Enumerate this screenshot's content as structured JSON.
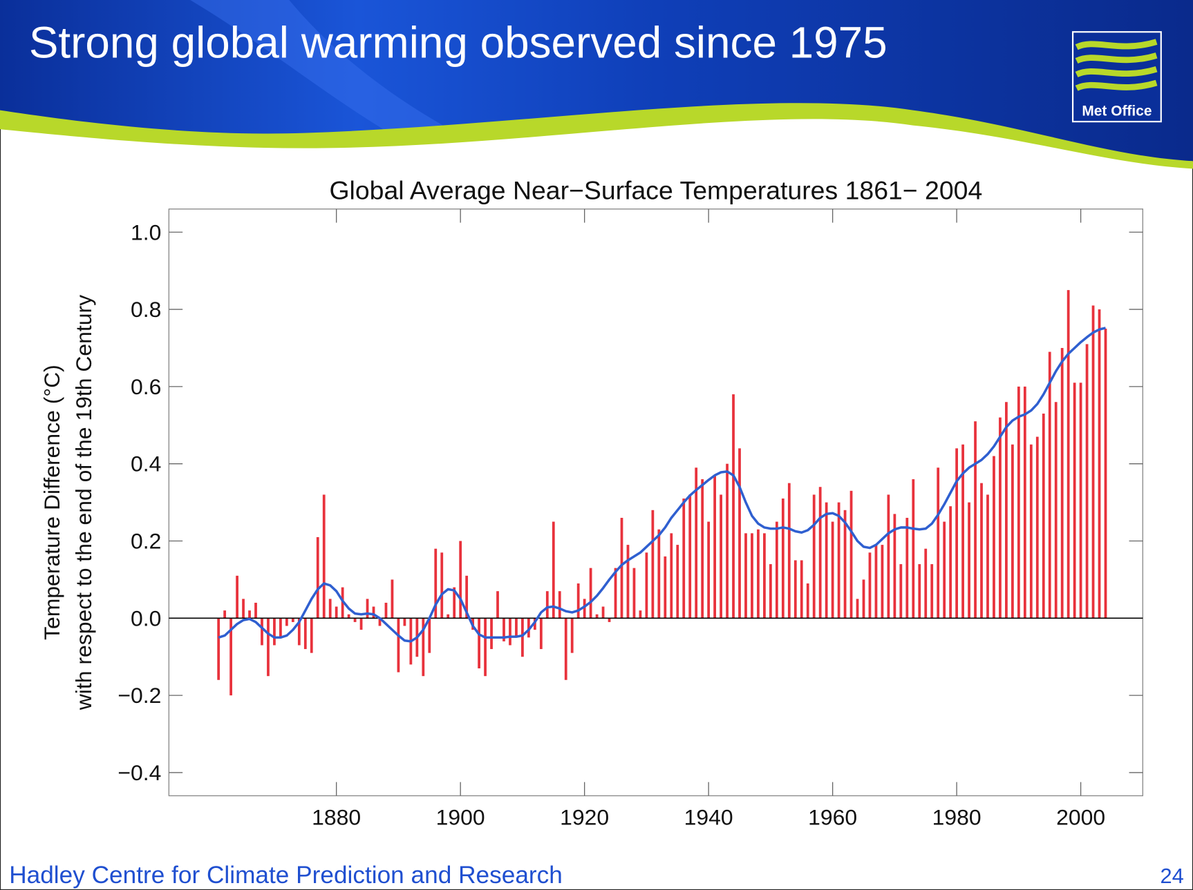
{
  "header": {
    "title": "Strong global warming observed since 1975",
    "logo": "Met Office"
  },
  "footer": {
    "organization": "Hadley Centre for Climate Prediction and Research",
    "page_number": "24"
  },
  "chart_data": {
    "type": "bar",
    "title": "Global Average Near−Surface Temperatures 1861− 2004",
    "ylabel": [
      "Temperature Difference (°C)",
      "with respect to the end of the 19th Century"
    ],
    "xlim": [
      1853,
      2010
    ],
    "xticks": [
      1880,
      1900,
      1920,
      1940,
      1960,
      1980,
      2000
    ],
    "ylim": [
      -0.46,
      1.06
    ],
    "yticks": [
      {
        "value": -0.4,
        "label": "−0.4"
      },
      {
        "value": -0.2,
        "label": "−0.2"
      },
      {
        "value": 0,
        "label": "0.0"
      },
      0.2,
      0.4,
      0.6,
      0.8,
      {
        "value": 1.0,
        "label": "1.0"
      }
    ],
    "x": [
      1861,
      1862,
      1863,
      1864,
      1865,
      1866,
      1867,
      1868,
      1869,
      1870,
      1871,
      1872,
      1873,
      1874,
      1875,
      1876,
      1877,
      1878,
      1879,
      1880,
      1881,
      1882,
      1883,
      1884,
      1885,
      1886,
      1887,
      1888,
      1889,
      1890,
      1891,
      1892,
      1893,
      1894,
      1895,
      1896,
      1897,
      1898,
      1899,
      1900,
      1901,
      1902,
      1903,
      1904,
      1905,
      1906,
      1907,
      1908,
      1909,
      1910,
      1911,
      1912,
      1913,
      1914,
      1915,
      1916,
      1917,
      1918,
      1919,
      1920,
      1921,
      1922,
      1923,
      1924,
      1925,
      1926,
      1927,
      1928,
      1929,
      1930,
      1931,
      1932,
      1933,
      1934,
      1935,
      1936,
      1937,
      1938,
      1939,
      1940,
      1941,
      1942,
      1943,
      1944,
      1945,
      1946,
      1947,
      1948,
      1949,
      1950,
      1951,
      1952,
      1953,
      1954,
      1955,
      1956,
      1957,
      1958,
      1959,
      1960,
      1961,
      1962,
      1963,
      1964,
      1965,
      1966,
      1967,
      1968,
      1969,
      1970,
      1971,
      1972,
      1973,
      1974,
      1975,
      1976,
      1977,
      1978,
      1979,
      1980,
      1981,
      1982,
      1983,
      1984,
      1985,
      1986,
      1987,
      1988,
      1989,
      1990,
      1991,
      1992,
      1993,
      1994,
      1995,
      1996,
      1997,
      1998,
      1999,
      2000,
      2001,
      2002,
      2003,
      2004
    ],
    "series": [
      {
        "kind": "bar",
        "color": "#e8323c",
        "values": [
          -0.16,
          0.02,
          -0.2,
          0.11,
          0.05,
          0.02,
          0.04,
          -0.07,
          -0.15,
          -0.07,
          -0.05,
          -0.02,
          -0.01,
          -0.07,
          -0.08,
          -0.09,
          0.21,
          0.32,
          0.05,
          0.03,
          0.08,
          0.01,
          -0.01,
          -0.03,
          0.05,
          0.03,
          -0.02,
          0.04,
          0.1,
          -0.14,
          -0.02,
          -0.12,
          -0.1,
          -0.15,
          -0.09,
          0.18,
          0.17,
          0.01,
          0.08,
          0.2,
          0.11,
          -0.03,
          -0.13,
          -0.15,
          -0.08,
          0.07,
          -0.06,
          -0.07,
          -0.05,
          -0.1,
          -0.05,
          -0.03,
          -0.08,
          0.07,
          0.25,
          0.07,
          -0.16,
          -0.09,
          0.09,
          0.05,
          0.13,
          0.01,
          0.03,
          -0.01,
          0.13,
          0.26,
          0.19,
          0.13,
          0.02,
          0.17,
          0.28,
          0.23,
          0.16,
          0.22,
          0.19,
          0.31,
          0.32,
          0.39,
          0.36,
          0.25,
          0.37,
          0.32,
          0.4,
          0.58,
          0.44,
          0.22,
          0.22,
          0.23,
          0.22,
          0.14,
          0.25,
          0.31,
          0.35,
          0.15,
          0.15,
          0.09,
          0.32,
          0.34,
          0.3,
          0.25,
          0.3,
          0.28,
          0.33,
          0.05,
          0.1,
          0.17,
          0.19,
          0.19,
          0.32,
          0.27,
          0.14,
          0.26,
          0.36,
          0.14,
          0.18,
          0.14,
          0.39,
          0.25,
          0.29,
          0.44,
          0.45,
          0.3,
          0.51,
          0.35,
          0.32,
          0.42,
          0.52,
          0.56,
          0.45,
          0.6,
          0.6,
          0.45,
          0.47,
          0.53,
          0.69,
          0.56,
          0.7,
          0.85,
          0.61,
          0.61,
          0.71,
          0.81,
          0.8,
          0.75
        ]
      },
      {
        "kind": "line",
        "color": "#2f5fd0",
        "values": [
          -0.05,
          -0.045,
          -0.03,
          -0.015,
          -0.005,
          -0.002,
          -0.01,
          -0.025,
          -0.04,
          -0.05,
          -0.05,
          -0.045,
          -0.03,
          -0.01,
          0.02,
          0.05,
          0.075,
          0.09,
          0.085,
          0.07,
          0.045,
          0.025,
          0.012,
          0.01,
          0.012,
          0.01,
          0.0,
          -0.015,
          -0.03,
          -0.045,
          -0.058,
          -0.06,
          -0.05,
          -0.03,
          0.0,
          0.035,
          0.062,
          0.075,
          0.072,
          0.05,
          0.015,
          -0.02,
          -0.042,
          -0.05,
          -0.05,
          -0.05,
          -0.05,
          -0.048,
          -0.048,
          -0.045,
          -0.03,
          -0.01,
          0.015,
          0.028,
          0.03,
          0.025,
          0.018,
          0.015,
          0.02,
          0.03,
          0.042,
          0.058,
          0.078,
          0.1,
          0.12,
          0.138,
          0.15,
          0.16,
          0.17,
          0.185,
          0.2,
          0.215,
          0.235,
          0.26,
          0.28,
          0.3,
          0.318,
          0.332,
          0.345,
          0.358,
          0.37,
          0.378,
          0.38,
          0.37,
          0.34,
          0.3,
          0.265,
          0.245,
          0.235,
          0.232,
          0.232,
          0.235,
          0.232,
          0.225,
          0.222,
          0.228,
          0.242,
          0.26,
          0.27,
          0.272,
          0.265,
          0.248,
          0.225,
          0.2,
          0.185,
          0.182,
          0.19,
          0.205,
          0.22,
          0.23,
          0.235,
          0.235,
          0.232,
          0.23,
          0.232,
          0.245,
          0.268,
          0.295,
          0.325,
          0.355,
          0.375,
          0.39,
          0.4,
          0.41,
          0.425,
          0.445,
          0.47,
          0.495,
          0.512,
          0.522,
          0.528,
          0.538,
          0.555,
          0.58,
          0.61,
          0.64,
          0.665,
          0.685,
          0.7,
          0.715,
          0.728,
          0.74,
          0.748,
          0.752
        ]
      }
    ]
  }
}
